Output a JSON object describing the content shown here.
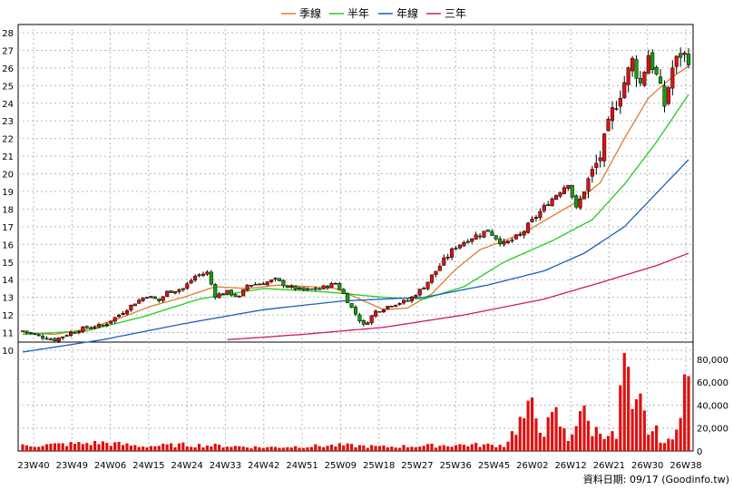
{
  "legend": [
    {
      "label": "季線",
      "color": "#e07b2a"
    },
    {
      "label": "半年",
      "color": "#22cc22"
    },
    {
      "label": "年線",
      "color": "#1a5fbf"
    },
    {
      "label": "三年",
      "color": "#cc1a66"
    }
  ],
  "footer": "資料日期: 09/17  (Goodinfo.tw)",
  "chart_data": {
    "type": "candlestick",
    "price_axis": {
      "min": 10,
      "max": 28,
      "ticks": [
        "28",
        "27",
        "26",
        "25",
        "24",
        "23",
        "22",
        "21",
        "20",
        "19",
        "18",
        "17",
        "16",
        "15",
        "14",
        "13",
        "12",
        "11",
        "10"
      ]
    },
    "volume_axis": {
      "min": 0,
      "max": 95000,
      "ticks": [
        "80,000",
        "60,000",
        "40,000",
        "20,000",
        "0"
      ]
    },
    "x_labels": [
      "23W40",
      "23W49",
      "24W06",
      "24W15",
      "24W24",
      "24W33",
      "24W42",
      "24W51",
      "25W09",
      "25W18",
      "25W27",
      "25W36",
      "25W45",
      "26W02",
      "26W12",
      "26W21",
      "26W30",
      "26W38"
    ],
    "price_anchors": [
      [
        0,
        11.1
      ],
      [
        4,
        10.8
      ],
      [
        8,
        10.6
      ],
      [
        12,
        11
      ],
      [
        16,
        11.3
      ],
      [
        20,
        11.4
      ],
      [
        24,
        12
      ],
      [
        28,
        12.7
      ],
      [
        31,
        13.1
      ],
      [
        34,
        12.8
      ],
      [
        36,
        13.3
      ],
      [
        40,
        13.5
      ],
      [
        43,
        14.2
      ],
      [
        46,
        14.4
      ],
      [
        48,
        13.1
      ],
      [
        51,
        13.3
      ],
      [
        54,
        13.0
      ],
      [
        56,
        13.7
      ],
      [
        60,
        13.8
      ],
      [
        63,
        14.0
      ],
      [
        66,
        13.6
      ],
      [
        70,
        13.4
      ],
      [
        74,
        13.5
      ],
      [
        78,
        13.8
      ],
      [
        80,
        13.2
      ],
      [
        82,
        12.4
      ],
      [
        85,
        11.4
      ],
      [
        88,
        12.2
      ],
      [
        92,
        12.6
      ],
      [
        96,
        12.8
      ],
      [
        100,
        13.6
      ],
      [
        104,
        14.8
      ],
      [
        108,
        15.9
      ],
      [
        112,
        16.4
      ],
      [
        116,
        16.8
      ],
      [
        120,
        16.0
      ],
      [
        124,
        16.5
      ],
      [
        128,
        17.6
      ],
      [
        132,
        18.6
      ],
      [
        136,
        19.5
      ],
      [
        138,
        18.0
      ],
      [
        141,
        19.6
      ],
      [
        144,
        21.0
      ],
      [
        147,
        23.5
      ],
      [
        150,
        25.2
      ],
      [
        152,
        26.4
      ],
      [
        154,
        25.1
      ],
      [
        156,
        26.8
      ],
      [
        158,
        25.5
      ],
      [
        160,
        23.9
      ],
      [
        162,
        26.0
      ],
      [
        164,
        26.8
      ],
      [
        166,
        26.6
      ]
    ],
    "ma_quarter": [
      [
        0,
        11.0
      ],
      [
        8,
        10.9
      ],
      [
        16,
        11.2
      ],
      [
        24,
        11.8
      ],
      [
        32,
        12.5
      ],
      [
        40,
        13.0
      ],
      [
        48,
        13.6
      ],
      [
        56,
        13.5
      ],
      [
        64,
        13.7
      ],
      [
        72,
        13.6
      ],
      [
        78,
        13.5
      ],
      [
        84,
        12.9
      ],
      [
        90,
        12.3
      ],
      [
        96,
        12.4
      ],
      [
        102,
        13.2
      ],
      [
        108,
        14.6
      ],
      [
        114,
        15.7
      ],
      [
        120,
        16.2
      ],
      [
        126,
        16.8
      ],
      [
        132,
        17.6
      ],
      [
        138,
        18.4
      ],
      [
        144,
        19.5
      ],
      [
        150,
        22.0
      ],
      [
        156,
        24.3
      ],
      [
        162,
        25.5
      ],
      [
        166,
        26.1
      ]
    ],
    "ma_half": [
      [
        0,
        10.9
      ],
      [
        16,
        11.1
      ],
      [
        30,
        11.9
      ],
      [
        44,
        12.9
      ],
      [
        60,
        13.5
      ],
      [
        76,
        13.3
      ],
      [
        90,
        13.0
      ],
      [
        100,
        12.9
      ],
      [
        110,
        13.6
      ],
      [
        120,
        15.0
      ],
      [
        132,
        16.2
      ],
      [
        142,
        17.4
      ],
      [
        150,
        19.4
      ],
      [
        158,
        21.8
      ],
      [
        166,
        24.5
      ]
    ],
    "ma_year": [
      [
        0,
        9.9
      ],
      [
        20,
        10.6
      ],
      [
        40,
        11.5
      ],
      [
        60,
        12.3
      ],
      [
        80,
        12.8
      ],
      [
        100,
        13.0
      ],
      [
        116,
        13.7
      ],
      [
        130,
        14.5
      ],
      [
        140,
        15.5
      ],
      [
        150,
        17.0
      ],
      [
        158,
        18.9
      ],
      [
        166,
        20.8
      ]
    ],
    "ma_3year": [
      [
        51,
        10.6
      ],
      [
        70,
        10.9
      ],
      [
        90,
        11.3
      ],
      [
        110,
        12.0
      ],
      [
        130,
        12.9
      ],
      [
        145,
        13.9
      ],
      [
        158,
        14.8
      ],
      [
        166,
        15.5
      ]
    ],
    "volume_anchors": [
      [
        0,
        5000
      ],
      [
        10,
        6500
      ],
      [
        20,
        8000
      ],
      [
        30,
        4500
      ],
      [
        40,
        6000
      ],
      [
        50,
        5000
      ],
      [
        60,
        3500
      ],
      [
        70,
        4500
      ],
      [
        80,
        5500
      ],
      [
        90,
        4000
      ],
      [
        100,
        5000
      ],
      [
        110,
        6000
      ],
      [
        120,
        5500
      ],
      [
        124,
        28000
      ],
      [
        127,
        40000
      ],
      [
        130,
        20000
      ],
      [
        133,
        34000
      ],
      [
        136,
        10000
      ],
      [
        139,
        41000
      ],
      [
        142,
        20000
      ],
      [
        146,
        18000
      ],
      [
        148,
        12000
      ],
      [
        150,
        90000
      ],
      [
        152,
        32000
      ],
      [
        154,
        45000
      ],
      [
        156,
        20000
      ],
      [
        158,
        18000
      ],
      [
        160,
        8000
      ],
      [
        162,
        10000
      ],
      [
        164,
        52000
      ],
      [
        165,
        70000
      ],
      [
        166,
        60000
      ]
    ]
  }
}
